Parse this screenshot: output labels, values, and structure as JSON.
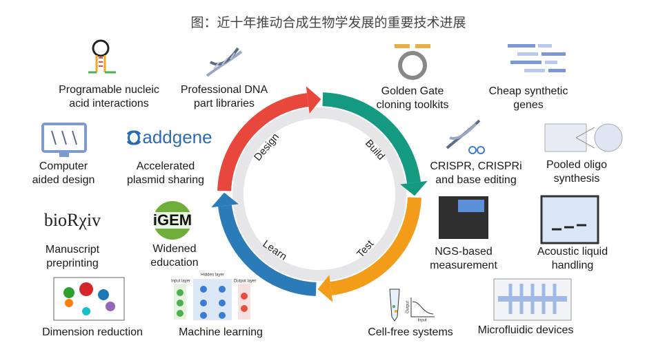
{
  "title": "图：近十年推动合成生物学发展的重要技术进展",
  "cycle": [
    "Design",
    "Build",
    "Test",
    "Learn"
  ],
  "items": [
    {
      "label": [
        "Programable nucleic",
        "acid interactions"
      ]
    },
    {
      "label": [
        "Professional DNA",
        "part libraries"
      ]
    },
    {
      "label": [
        "Golden Gate",
        "cloning toolkits"
      ]
    },
    {
      "label": [
        "Cheap synthetic",
        "genes"
      ]
    },
    {
      "label": [
        "Computer",
        "aided design"
      ]
    },
    {
      "label": [
        "Accelerated",
        "plasmid sharing"
      ]
    },
    {
      "label": [
        "CRISPR, CRISPRi",
        "and base editing"
      ]
    },
    {
      "label": [
        "Pooled oligo",
        "synthesis"
      ]
    },
    {
      "label": [
        "Manuscript",
        "preprinting"
      ]
    },
    {
      "label": [
        "Widened",
        "education"
      ]
    },
    {
      "label": [
        "NGS-based",
        "measurement"
      ]
    },
    {
      "label": [
        "Acoustic liquid",
        "handling"
      ]
    },
    {
      "label": [
        "Dimension reduction"
      ]
    },
    {
      "label": [
        "Machine learning"
      ]
    },
    {
      "label": [
        "Cell-free systems"
      ]
    },
    {
      "label": [
        "Microfluidic devices"
      ]
    }
  ],
  "logos": {
    "addgene": "addgene",
    "biorxiv": "bioRχiv",
    "igem": "iGEM"
  },
  "network": {
    "input": "Input layer",
    "hidden": "Hidden layer",
    "output": "Output layer"
  },
  "plot": {
    "x": "Input",
    "y": "Output"
  }
}
